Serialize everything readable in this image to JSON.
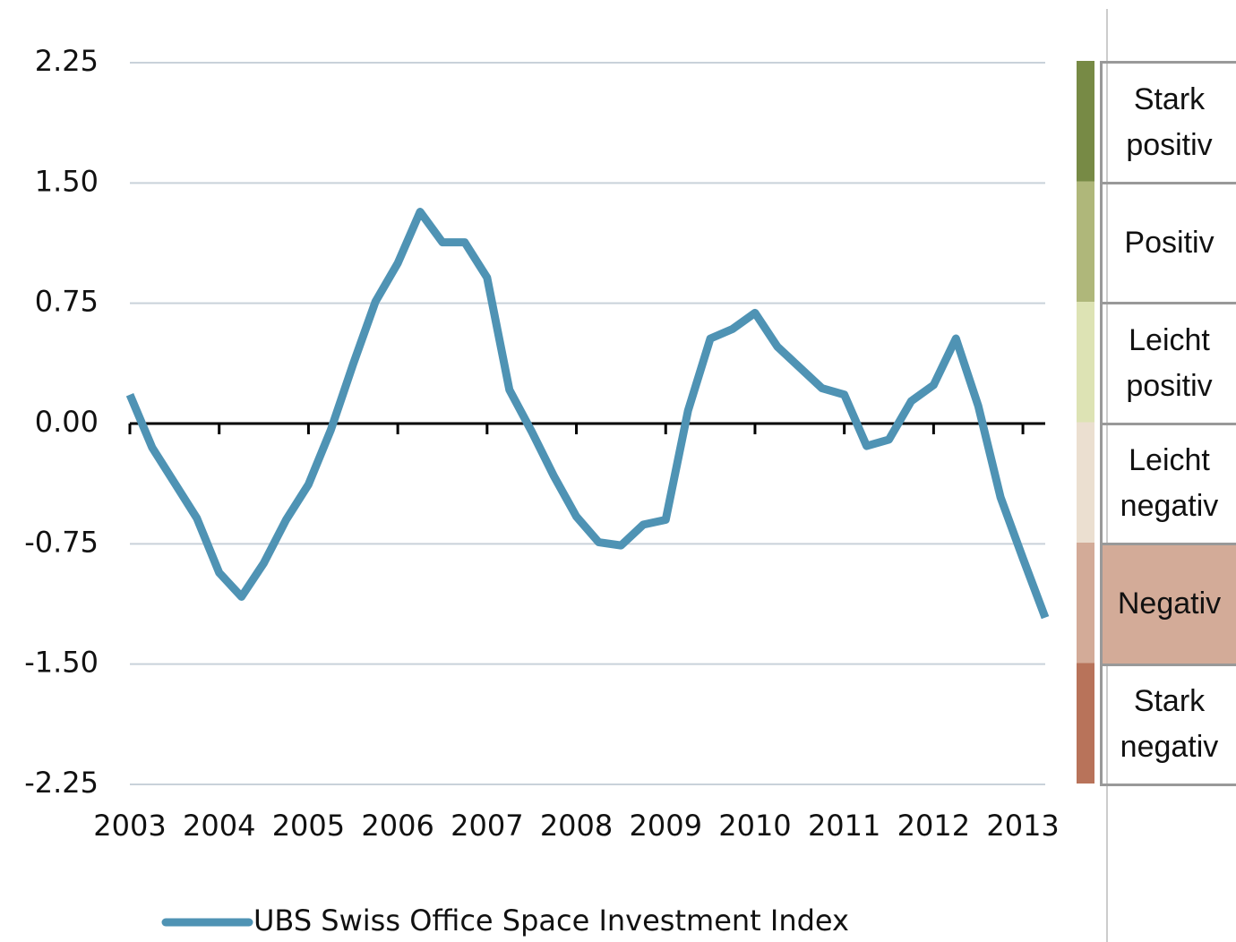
{
  "chart_data": {
    "type": "line",
    "x": [
      2003,
      2003.25,
      2003.5,
      2003.75,
      2004,
      2004.25,
      2004.5,
      2004.75,
      2005,
      2005.25,
      2005.5,
      2005.75,
      2006,
      2006.25,
      2006.5,
      2006.75,
      2007,
      2007.25,
      2007.5,
      2007.75,
      2008,
      2008.25,
      2008.5,
      2008.75,
      2009,
      2009.25,
      2009.5,
      2009.75,
      2010,
      2010.25,
      2010.5,
      2010.75,
      2011,
      2011.25,
      2011.5,
      2011.75,
      2012,
      2012.25,
      2012.5,
      2012.75,
      2013,
      2013.25
    ],
    "series": [
      {
        "name": "UBS Swiss Office Space Investment Index",
        "color": "#4f93b4",
        "values": [
          0.18,
          -0.15,
          -0.37,
          -0.59,
          -0.93,
          -1.08,
          -0.87,
          -0.6,
          -0.38,
          -0.04,
          0.37,
          0.76,
          1.0,
          1.32,
          1.13,
          1.13,
          0.91,
          0.21,
          -0.05,
          -0.33,
          -0.58,
          -0.74,
          -0.76,
          -0.63,
          -0.6,
          0.08,
          0.53,
          0.59,
          0.69,
          0.48,
          0.35,
          0.22,
          0.18,
          -0.14,
          -0.1,
          0.14,
          0.24,
          0.53,
          0.11,
          -0.46,
          -0.84,
          -1.21
        ]
      }
    ],
    "xlim": [
      2003,
      2013.25
    ],
    "xticks": [
      2003,
      2004,
      2005,
      2006,
      2007,
      2008,
      2009,
      2010,
      2011,
      2012,
      2013
    ],
    "ylim": [
      -2.25,
      2.25
    ],
    "yticks": [
      {
        "value": 2.25,
        "label": "2.25"
      },
      {
        "value": 1.5,
        "label": "1.50"
      },
      {
        "value": 0.75,
        "label": "0.75"
      },
      {
        "value": 0,
        "label": "0.00"
      },
      {
        "value": -0.75,
        "label": "-0.75"
      },
      {
        "value": -1.5,
        "label": "-1.50"
      },
      {
        "value": -2.25,
        "label": "-2.25"
      }
    ],
    "grid": true,
    "legend": "bottom"
  },
  "scale": {
    "selected": 4,
    "items": [
      {
        "label": "Stark positiv",
        "color": "#778a45"
      },
      {
        "label": "Positiv",
        "color": "#afb77a"
      },
      {
        "label": "Leicht positiv",
        "color": "#dde3b4"
      },
      {
        "label": "Leicht negativ",
        "color": "#ebdfd0"
      },
      {
        "label": "Negativ",
        "color": "#d3ab98"
      },
      {
        "label": "Stark negativ",
        "color": "#b8735a"
      }
    ]
  }
}
